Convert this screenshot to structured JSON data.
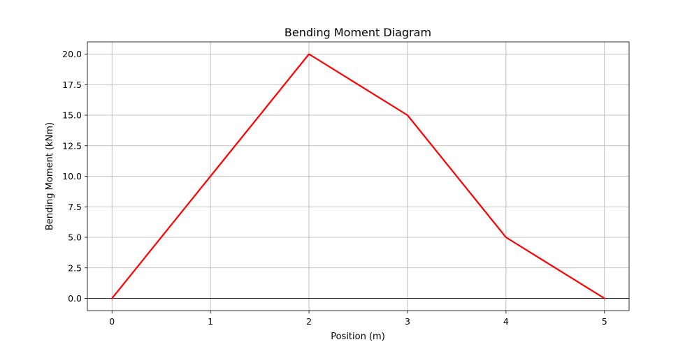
{
  "chart_data": {
    "type": "line",
    "title": "Bending Moment Diagram",
    "xlabel": "Position (m)",
    "ylabel": "Bending Moment (kNm)",
    "x": [
      0,
      1,
      2,
      3,
      4,
      5
    ],
    "series": [
      {
        "values": [
          0,
          10,
          20,
          15,
          5,
          0
        ],
        "color": "#ff0000"
      }
    ],
    "xlim": [
      -0.25,
      5.25
    ],
    "ylim": [
      -1.0,
      21.0
    ],
    "xticks": [
      0,
      1,
      2,
      3,
      4,
      5
    ],
    "xtick_labels": [
      "0",
      "1",
      "2",
      "3",
      "4",
      "5"
    ],
    "yticks": [
      0,
      2.5,
      5,
      7.5,
      10,
      12.5,
      15,
      17.5,
      20
    ],
    "ytick_labels": [
      "0.0",
      "2.5",
      "5.0",
      "7.5",
      "10.0",
      "12.5",
      "15.0",
      "17.5",
      "20.0"
    ],
    "grid": true,
    "zero_line": {
      "y": 0,
      "color": "#000000"
    }
  }
}
